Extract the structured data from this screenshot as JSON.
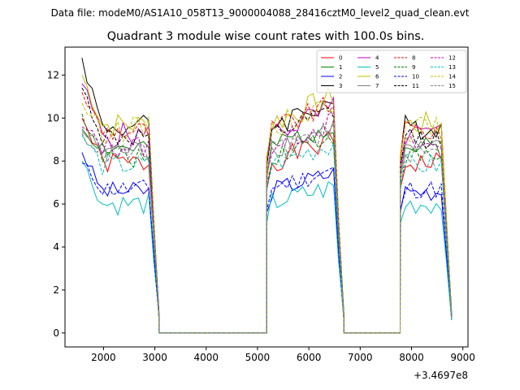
{
  "figure": {
    "suptitle": "Data file: modeM0/AS1A10_058T13_9000004088_28416cztM0_level2_quad_clean.evt"
  },
  "chart_data": {
    "type": "line",
    "title": "Quadrant 3 module wise count rates with 100.0s bins.",
    "xlabel": "",
    "ylabel": "",
    "offset_text": "+3.4697e8",
    "xlim": [
      1250,
      9100
    ],
    "ylim": [
      -0.65,
      13.3
    ],
    "xticks": [
      2000,
      3000,
      4000,
      5000,
      6000,
      7000,
      8000,
      9000
    ],
    "yticks": [
      0,
      2,
      4,
      6,
      8,
      10,
      12
    ],
    "grid": false,
    "legend": {
      "position": "top-right",
      "columns": 4
    },
    "segments": [
      {
        "start": 1580,
        "end": 3080
      },
      {
        "start": 5180,
        "end": 6680
      },
      {
        "start": 7780,
        "end": 8780
      }
    ],
    "series": [
      {
        "name": "0",
        "color": "#ff0000",
        "dash": false,
        "base": 7.9,
        "amp": 0.35,
        "seed": 1,
        "first": 10.0
      },
      {
        "name": "1",
        "color": "#008000",
        "dash": false,
        "base": 8.6,
        "amp": 0.35,
        "seed": 2,
        "first": 9.5
      },
      {
        "name": "2",
        "color": "#0000ff",
        "dash": false,
        "base": 6.6,
        "amp": 0.3,
        "seed": 3,
        "first": 8.4
      },
      {
        "name": "3",
        "color": "#000000",
        "dash": false,
        "base": 9.6,
        "amp": 0.4,
        "seed": 4,
        "first": 12.8
      },
      {
        "name": "4",
        "color": "#bf00bf",
        "dash": false,
        "base": 9.2,
        "amp": 0.4,
        "seed": 5,
        "first": 11.6
      },
      {
        "name": "5",
        "color": "#00bfbf",
        "dash": false,
        "base": 6.0,
        "amp": 0.35,
        "seed": 6,
        "first": 8.0
      },
      {
        "name": "6",
        "color": "#bfbf00",
        "dash": false,
        "base": 9.7,
        "amp": 0.4,
        "seed": 7,
        "first": 12.0
      },
      {
        "name": "7",
        "color": "#808080",
        "dash": false,
        "base": 8.5,
        "amp": 0.35,
        "seed": 8,
        "first": 9.4
      },
      {
        "name": "8",
        "color": "#ff0000",
        "dash": true,
        "base": 9.4,
        "amp": 0.35,
        "seed": 9,
        "first": 11.2
      },
      {
        "name": "9",
        "color": "#008000",
        "dash": true,
        "base": 8.2,
        "amp": 0.35,
        "seed": 10,
        "first": 10.2
      },
      {
        "name": "10",
        "color": "#0000ff",
        "dash": true,
        "base": 6.7,
        "amp": 0.3,
        "seed": 11,
        "first": 7.9
      },
      {
        "name": "11",
        "color": "#000000",
        "dash": true,
        "base": 9.1,
        "amp": 0.35,
        "seed": 12,
        "first": 11.4
      },
      {
        "name": "12",
        "color": "#bf00bf",
        "dash": true,
        "base": 8.7,
        "amp": 0.35,
        "seed": 13,
        "first": 9.6
      },
      {
        "name": "13",
        "color": "#00bfbf",
        "dash": true,
        "base": 7.8,
        "amp": 0.35,
        "seed": 14,
        "first": 9.2
      },
      {
        "name": "14",
        "color": "#bfbf00",
        "dash": true,
        "base": 9.5,
        "amp": 0.4,
        "seed": 15,
        "first": 10.7
      },
      {
        "name": "15",
        "color": "#808080",
        "dash": true,
        "base": 8.4,
        "amp": 0.35,
        "seed": 16,
        "first": 9.3
      }
    ]
  }
}
